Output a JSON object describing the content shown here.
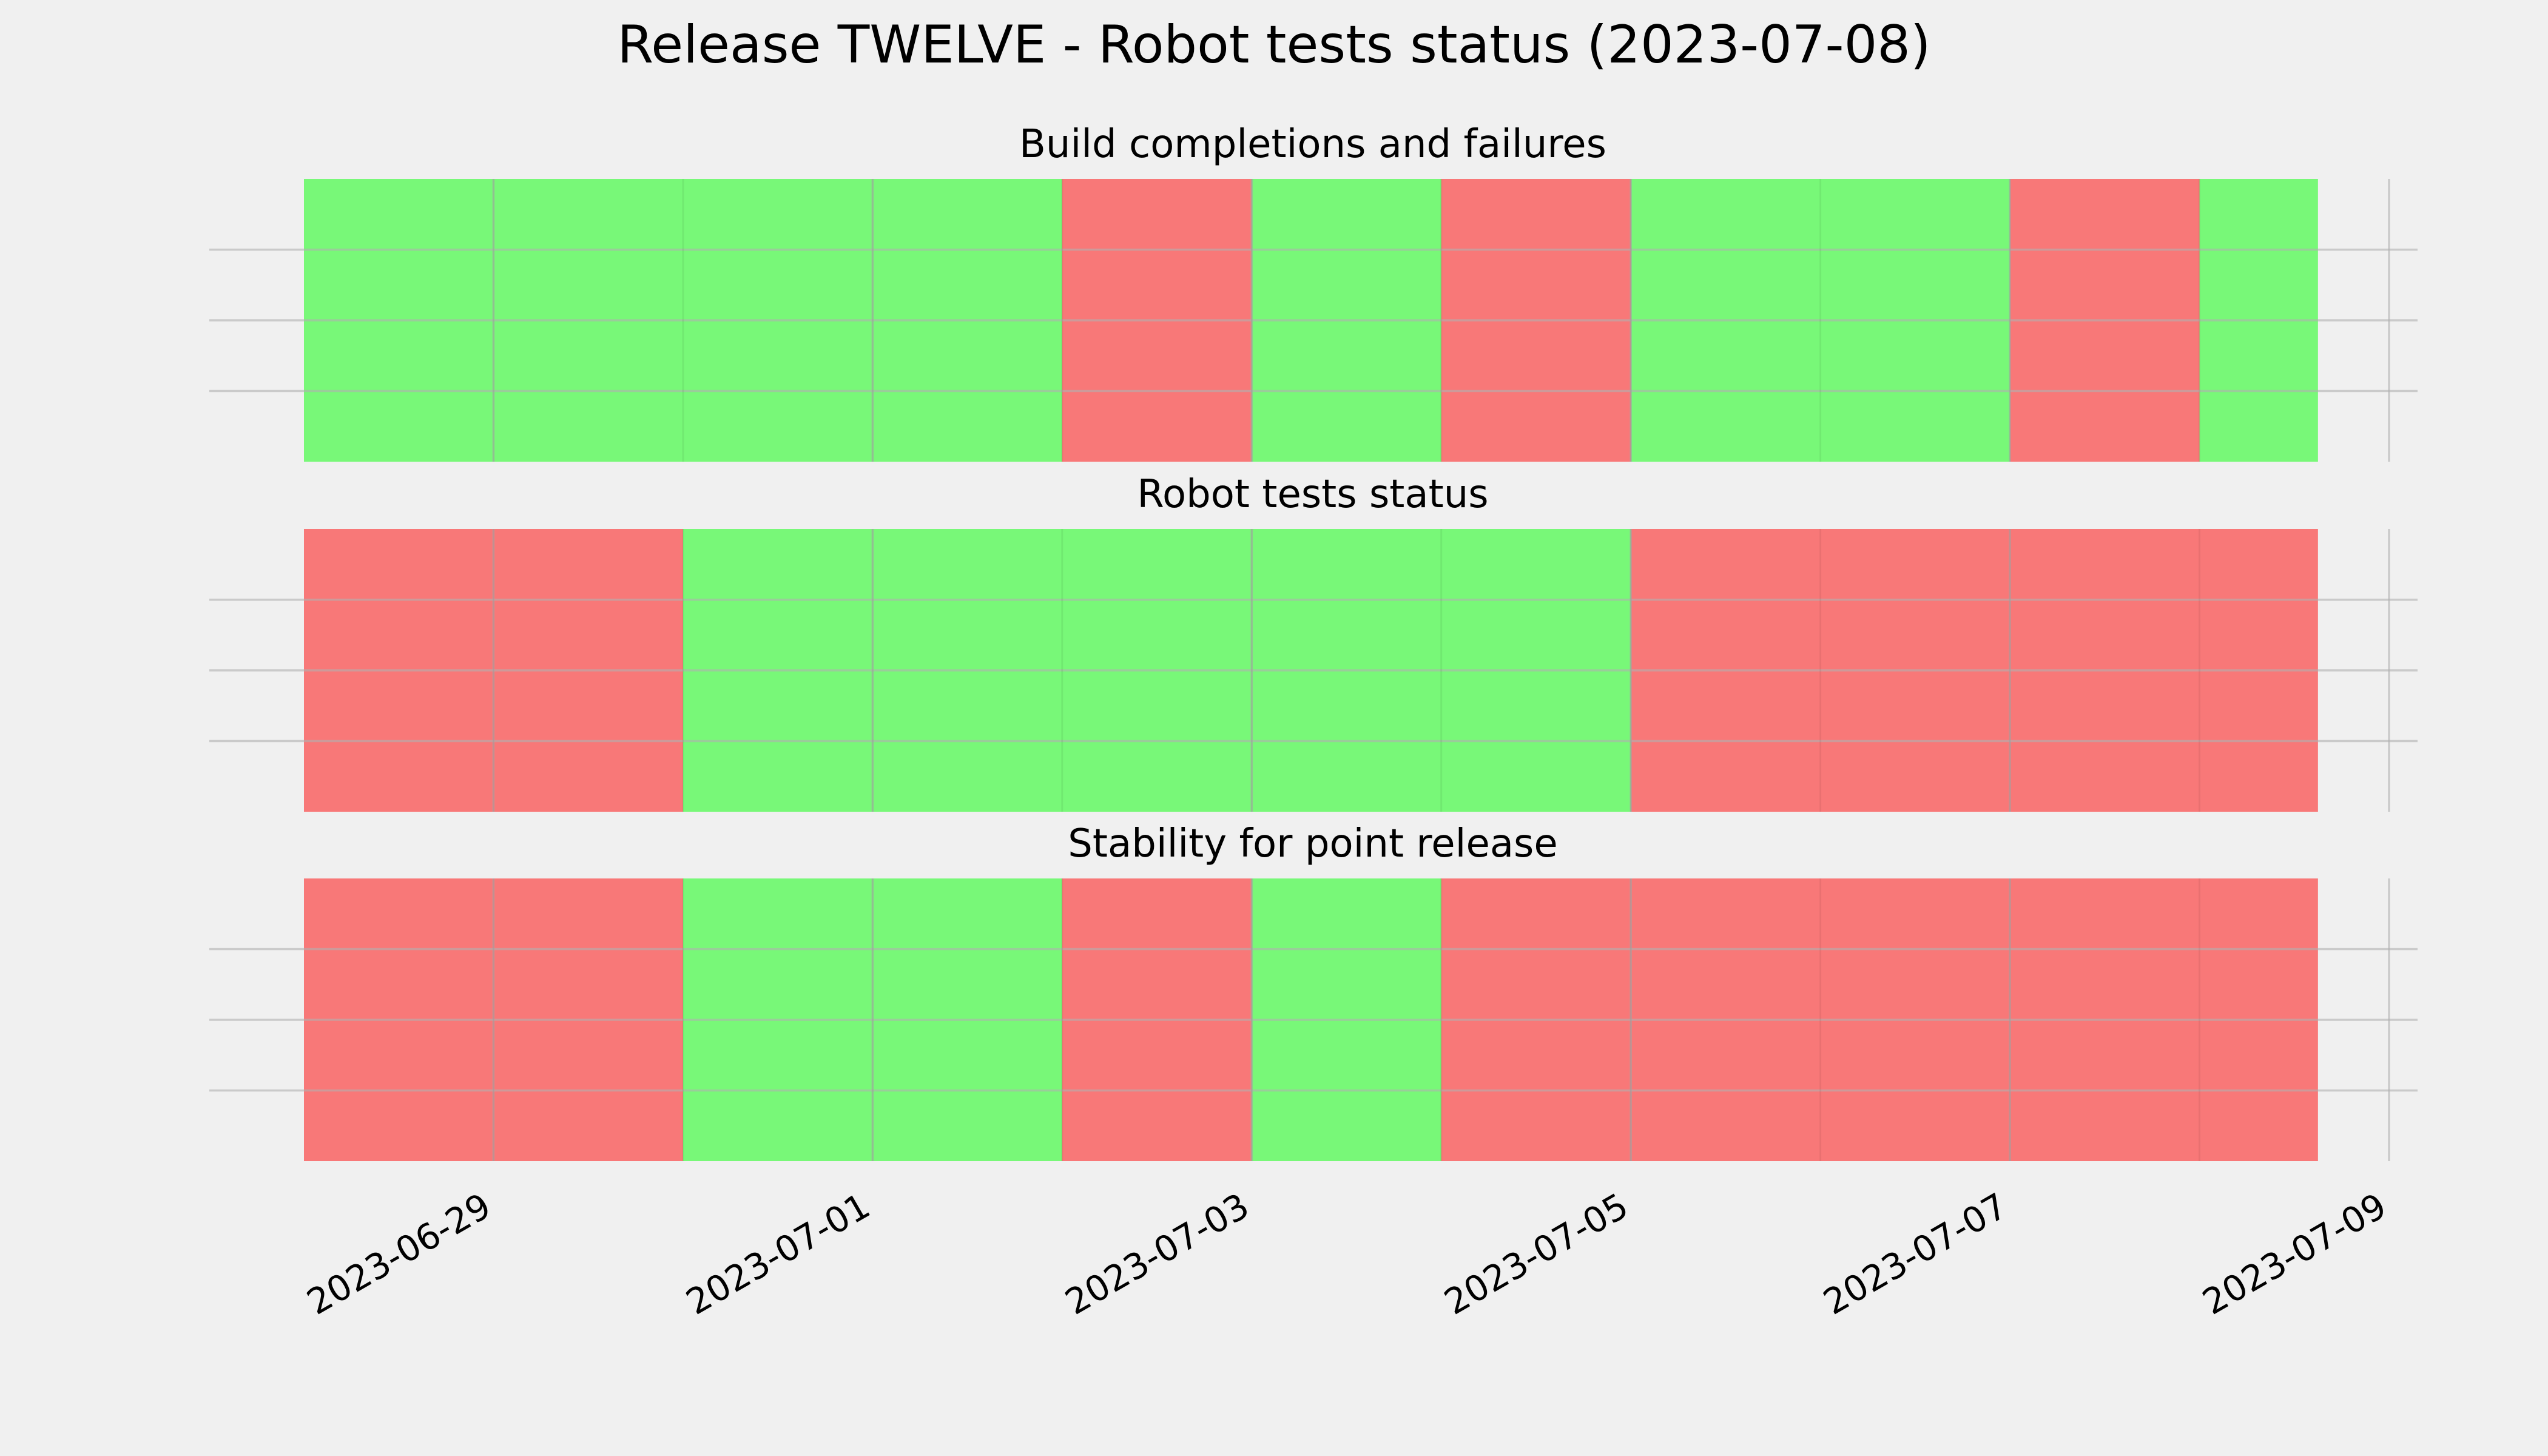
{
  "chart_data": {
    "type": "timeline",
    "title": "Release TWELVE - Robot tests status (2023-07-08)",
    "colors": {
      "pass": "#00ff00",
      "fail": "#ff0000"
    },
    "x_range": [
      "2023-06-28",
      "2023-07-09"
    ],
    "x_ticks": [
      "2023-06-29",
      "2023-07-01",
      "2023-07-03",
      "2023-07-05",
      "2023-07-07",
      "2023-07-09"
    ],
    "grid": true,
    "panels": [
      {
        "title": "Build completions and failures",
        "segments": [
          {
            "start": "2023-06-28",
            "end": "2023-07-02",
            "status": "pass"
          },
          {
            "start": "2023-07-02",
            "end": "2023-07-03",
            "status": "fail"
          },
          {
            "start": "2023-07-03",
            "end": "2023-07-04",
            "status": "pass"
          },
          {
            "start": "2023-07-04",
            "end": "2023-07-05",
            "status": "fail"
          },
          {
            "start": "2023-07-05",
            "end": "2023-07-07",
            "status": "pass"
          },
          {
            "start": "2023-07-07",
            "end": "2023-07-08",
            "status": "fail"
          },
          {
            "start": "2023-07-08",
            "end": "2023-07-08T15:00",
            "status": "pass"
          }
        ]
      },
      {
        "title": "Robot tests status",
        "segments": [
          {
            "start": "2023-06-28",
            "end": "2023-06-30",
            "status": "fail"
          },
          {
            "start": "2023-06-30",
            "end": "2023-07-05",
            "status": "pass"
          },
          {
            "start": "2023-07-05",
            "end": "2023-07-08T15:00",
            "status": "fail"
          }
        ]
      },
      {
        "title": "Stability for point release",
        "segments": [
          {
            "start": "2023-06-28",
            "end": "2023-06-30",
            "status": "fail"
          },
          {
            "start": "2023-06-30",
            "end": "2023-07-02",
            "status": "pass"
          },
          {
            "start": "2023-07-02",
            "end": "2023-07-03",
            "status": "fail"
          },
          {
            "start": "2023-07-03",
            "end": "2023-07-04",
            "status": "pass"
          },
          {
            "start": "2023-07-04",
            "end": "2023-07-08T15:00",
            "status": "fail"
          }
        ]
      }
    ]
  }
}
